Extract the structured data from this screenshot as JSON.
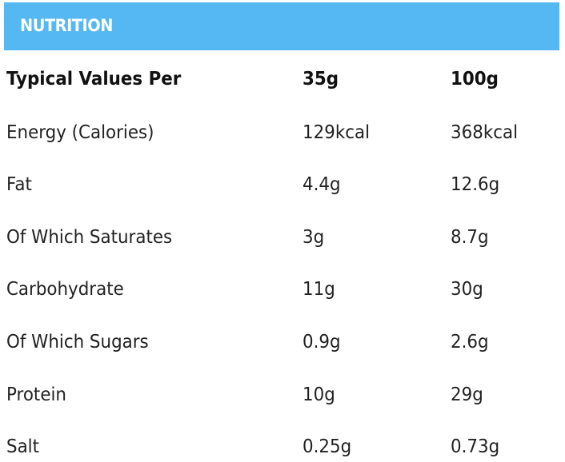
{
  "header": {
    "title": "NUTRITION"
  },
  "table": {
    "columns": [
      "Typical Values Per",
      "35g",
      "100g"
    ],
    "rows": [
      {
        "label": "Energy (Calories)",
        "per_35g": "129kcal",
        "per_100g": "368kcal"
      },
      {
        "label": "Fat",
        "per_35g": "4.4g",
        "per_100g": "12.6g"
      },
      {
        "label": "Of Which Saturates",
        "per_35g": "3g",
        "per_100g": "8.7g"
      },
      {
        "label": "Carbohydrate",
        "per_35g": "11g",
        "per_100g": "30g"
      },
      {
        "label": "Of Which Sugars",
        "per_35g": "0.9g",
        "per_100g": "2.6g"
      },
      {
        "label": "Protein",
        "per_35g": "10g",
        "per_100g": "29g"
      },
      {
        "label": "Salt",
        "per_35g": "0.25g",
        "per_100g": "0.73g"
      }
    ]
  },
  "colors": {
    "header_bar": "#55b8f2",
    "header_text": "#ffffff",
    "body_text": "#222222"
  }
}
